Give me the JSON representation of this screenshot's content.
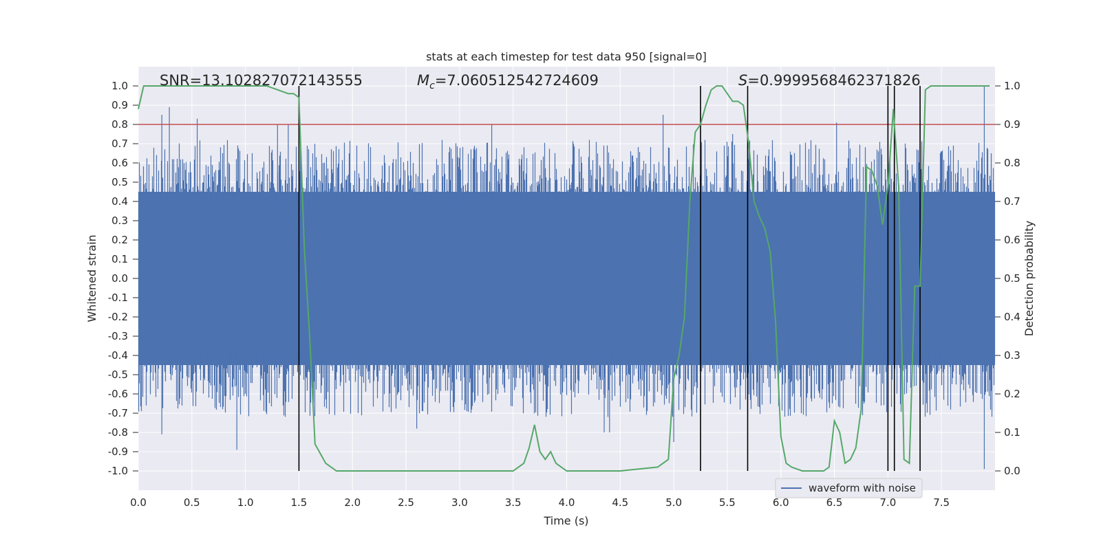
{
  "chart_data": {
    "type": "line",
    "title": "stats at each timestep for test data 950 [signal=0]",
    "xlabel": "Time (s)",
    "ylabel": "Whitened strain",
    "y2label": "Detection probability",
    "xlim": [
      0.0,
      8.0
    ],
    "ylim": [
      -1.1,
      1.1
    ],
    "y2lim": [
      -0.05,
      1.05
    ],
    "xticks": [
      "0.0",
      "0.5",
      "1.0",
      "1.5",
      "2.0",
      "2.5",
      "3.0",
      "3.5",
      "4.0",
      "4.5",
      "5.0",
      "5.5",
      "6.0",
      "6.5",
      "7.0",
      "7.5"
    ],
    "yticks": [
      "1.0",
      "0.9",
      "0.8",
      "0.7",
      "0.6",
      "0.5",
      "0.4",
      "0.3",
      "0.2",
      "0.1",
      "0.0",
      "-0.1",
      "-0.2",
      "-0.3",
      "-0.4",
      "-0.5",
      "-0.6",
      "-0.7",
      "-0.8",
      "-0.9",
      "-1.0"
    ],
    "y2ticks": [
      "1.0",
      "0.9",
      "0.8",
      "0.7",
      "0.6",
      "0.5",
      "0.4",
      "0.3",
      "0.2",
      "0.1",
      "0.0"
    ],
    "threshold": 0.8,
    "threshold_color": "#c44e52",
    "waveform_color": "#4c72b0",
    "probability_color": "#55a868",
    "detection_line_color": "#000000",
    "annotations": {
      "snr": "SNR=13.102827072143555",
      "mc_symbol": "M",
      "mc_subscript": "c",
      "mc_value": "=7.060512542724609",
      "s_symbol": "S",
      "s_value": "=0.9999568462371826"
    },
    "legend": "waveform with noise",
    "detection_times": [
      1.5,
      5.25,
      5.69,
      7.0,
      7.06,
      7.3
    ],
    "waveform": {
      "name": "waveform with noise",
      "noise_band": [
        -0.45,
        0.45
      ],
      "peak_spikes": [
        [
          0.22,
          0.85
        ],
        [
          0.29,
          0.89
        ],
        [
          0.55,
          0.83
        ],
        [
          1.3,
          0.8
        ],
        [
          1.4,
          0.8
        ],
        [
          3.3,
          0.8
        ],
        [
          4.9,
          0.85
        ],
        [
          5.55,
          0.75
        ],
        [
          6.52,
          0.81
        ],
        [
          7.9,
          1.0
        ]
      ],
      "trough_spikes": [
        [
          0.22,
          -0.81
        ],
        [
          0.92,
          -0.89
        ],
        [
          2.6,
          -0.78
        ],
        [
          4.35,
          -0.8
        ],
        [
          4.4,
          -0.8
        ],
        [
          5.0,
          -0.85
        ],
        [
          7.9,
          -0.99
        ]
      ]
    },
    "detection_probability": {
      "name": "detection probability",
      "x": [
        0.0,
        0.05,
        0.1,
        0.5,
        1.0,
        1.2,
        1.3,
        1.4,
        1.45,
        1.5,
        1.55,
        1.6,
        1.65,
        1.75,
        1.85,
        2.0,
        2.5,
        3.0,
        3.5,
        3.55,
        3.6,
        3.65,
        3.7,
        3.75,
        3.8,
        3.85,
        3.9,
        3.95,
        4.0,
        4.5,
        4.85,
        4.95,
        5.0,
        5.05,
        5.1,
        5.15,
        5.2,
        5.25,
        5.3,
        5.35,
        5.4,
        5.45,
        5.5,
        5.55,
        5.6,
        5.65,
        5.7,
        5.75,
        5.8,
        5.85,
        5.9,
        5.95,
        6.0,
        6.05,
        6.1,
        6.2,
        6.3,
        6.4,
        6.45,
        6.5,
        6.55,
        6.6,
        6.65,
        6.7,
        6.75,
        6.8,
        6.85,
        6.9,
        6.95,
        7.0,
        7.05,
        7.1,
        7.15,
        7.2,
        7.25,
        7.3,
        7.35,
        7.4,
        7.5,
        7.6,
        7.7,
        7.8,
        7.95
      ],
      "y": [
        0.94,
        1.0,
        1.0,
        1.0,
        1.0,
        1.0,
        0.99,
        0.98,
        0.98,
        0.97,
        0.58,
        0.35,
        0.07,
        0.02,
        0.0,
        0.0,
        0.0,
        0.0,
        0.0,
        0.01,
        0.02,
        0.06,
        0.12,
        0.05,
        0.03,
        0.05,
        0.02,
        0.01,
        0.0,
        0.0,
        0.01,
        0.03,
        0.24,
        0.3,
        0.4,
        0.7,
        0.88,
        0.9,
        0.95,
        0.99,
        1.0,
        1.0,
        0.98,
        0.96,
        0.96,
        0.95,
        0.85,
        0.7,
        0.66,
        0.63,
        0.57,
        0.39,
        0.09,
        0.02,
        0.01,
        0.0,
        0.0,
        0.0,
        0.01,
        0.13,
        0.1,
        0.02,
        0.03,
        0.06,
        0.16,
        0.79,
        0.78,
        0.74,
        0.64,
        0.74,
        0.94,
        0.74,
        0.03,
        0.02,
        0.48,
        0.48,
        0.99,
        1.0,
        1.0,
        1.0,
        1.0,
        1.0,
        1.0
      ]
    }
  }
}
